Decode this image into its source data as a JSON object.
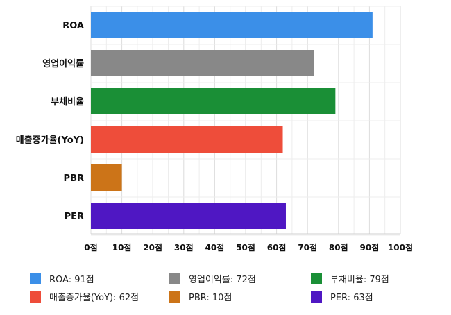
{
  "chart_data": {
    "type": "bar",
    "orientation": "horizontal",
    "title": "",
    "xlabel": "",
    "ylabel": "",
    "categories": [
      "ROA",
      "영업이익률",
      "부채비율",
      "매출증가율(YoY)",
      "PBR",
      "PER"
    ],
    "values": [
      91,
      72,
      79,
      62,
      10,
      63
    ],
    "colors": [
      "#3b8fe8",
      "#888888",
      "#1a8f36",
      "#ee4d3a",
      "#cc7418",
      "#4f17c3"
    ],
    "xlim": [
      0,
      100
    ],
    "x_ticks": [
      0,
      10,
      20,
      30,
      40,
      50,
      60,
      70,
      80,
      90,
      100
    ],
    "tick_suffix": "점",
    "grid": true,
    "legend_position": "bottom",
    "legend": [
      {
        "label": "ROA: 91점",
        "color": "#3b8fe8"
      },
      {
        "label": "영업이익률: 72점",
        "color": "#888888"
      },
      {
        "label": "부채비율: 79점",
        "color": "#1a8f36"
      },
      {
        "label": "매출증가율(YoY): 62점",
        "color": "#ee4d3a"
      },
      {
        "label": "PBR: 10점",
        "color": "#cc7418"
      },
      {
        "label": "PER: 63점",
        "color": "#4f17c3"
      }
    ]
  }
}
